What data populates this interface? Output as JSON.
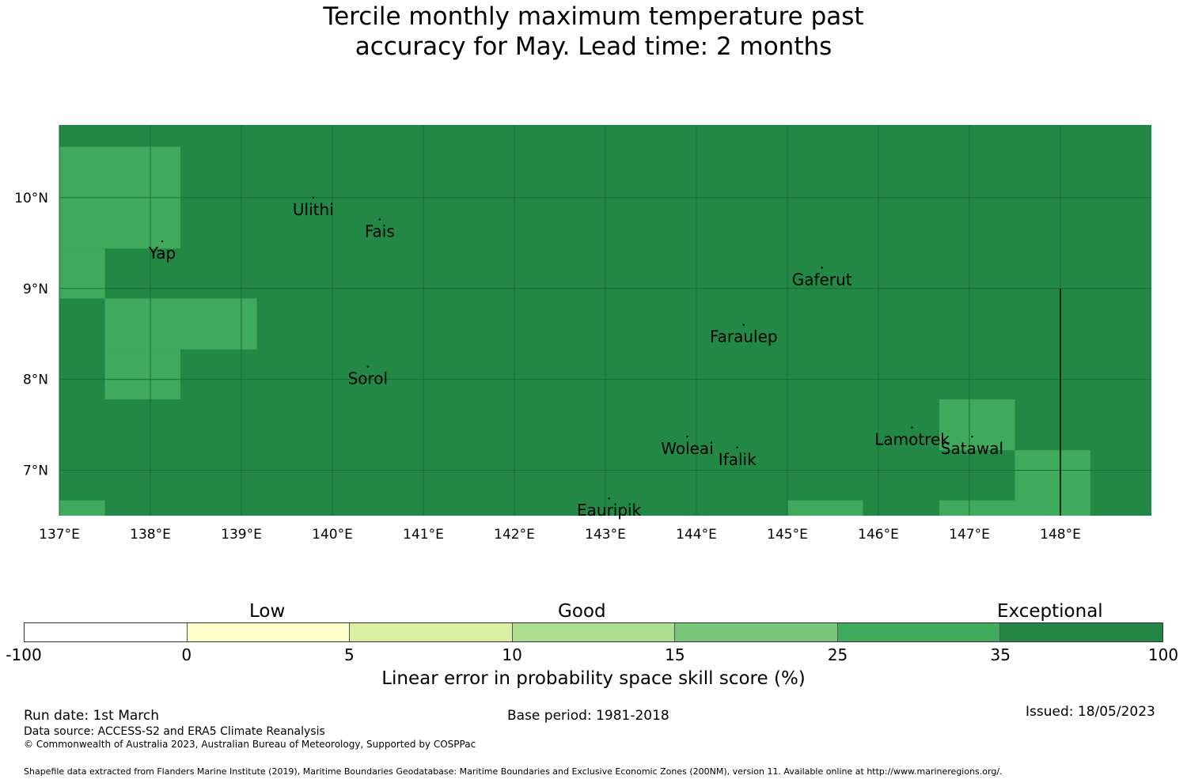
{
  "title": {
    "line1": "Tercile monthly maximum temperature past",
    "line2": "accuracy for May. Lead time: 2 months"
  },
  "map": {
    "lon_range": [
      137.0,
      149.0
    ],
    "lat_range": [
      6.5,
      10.8
    ],
    "lon_ticks": [
      {
        "value": 137,
        "label": "137°E"
      },
      {
        "value": 138,
        "label": "138°E"
      },
      {
        "value": 139,
        "label": "139°E"
      },
      {
        "value": 140,
        "label": "140°E"
      },
      {
        "value": 141,
        "label": "141°E"
      },
      {
        "value": 142,
        "label": "142°E"
      },
      {
        "value": 143,
        "label": "143°E"
      },
      {
        "value": 144,
        "label": "144°E"
      },
      {
        "value": 145,
        "label": "145°E"
      },
      {
        "value": 146,
        "label": "146°E"
      },
      {
        "value": 147,
        "label": "147°E"
      },
      {
        "value": 148,
        "label": "148°E"
      }
    ],
    "lat_ticks": [
      {
        "value": 10,
        "label": "10°N"
      },
      {
        "value": 9,
        "label": "9°N"
      },
      {
        "value": 8,
        "label": "8°N"
      },
      {
        "value": 7,
        "label": "7°N"
      }
    ],
    "background_color": "#238845",
    "patch_color": "#40aa5c",
    "grid_color": "#1a6b36",
    "patches": [
      {
        "lon": [
          137.0,
          138.33
        ],
        "lat": [
          9.44,
          10.56
        ]
      },
      {
        "lon": [
          137.0,
          137.5
        ],
        "lat": [
          8.89,
          9.44
        ]
      },
      {
        "lon": [
          137.5,
          139.17
        ],
        "lat": [
          8.33,
          8.89
        ]
      },
      {
        "lon": [
          137.5,
          138.33
        ],
        "lat": [
          7.78,
          8.33
        ]
      },
      {
        "lon": [
          146.67,
          147.5
        ],
        "lat": [
          7.22,
          7.78
        ]
      },
      {
        "lon": [
          147.5,
          148.33
        ],
        "lat": [
          6.67,
          7.22
        ]
      },
      {
        "lon": [
          137.0,
          137.5
        ],
        "lat": [
          6.5,
          6.67
        ]
      },
      {
        "lon": [
          145.0,
          145.83
        ],
        "lat": [
          6.5,
          6.67
        ]
      },
      {
        "lon": [
          146.67,
          147.5
        ],
        "lat": [
          6.5,
          6.67
        ]
      },
      {
        "lon": [
          147.5,
          148.33
        ],
        "lat": [
          6.5,
          6.67
        ]
      }
    ],
    "boundary_line": {
      "lon": 148.0,
      "lat": [
        6.5,
        9.0
      ]
    },
    "places": [
      {
        "name": "Ulithi",
        "lon": 139.79,
        "lat": 10.0
      },
      {
        "name": "Fais",
        "lon": 140.52,
        "lat": 9.76
      },
      {
        "name": "Yap",
        "lon": 138.13,
        "lat": 9.52
      },
      {
        "name": "Gaferut",
        "lon": 145.38,
        "lat": 9.23
      },
      {
        "name": "Faraulep",
        "lon": 144.52,
        "lat": 8.6
      },
      {
        "name": "Sorol",
        "lon": 140.39,
        "lat": 8.14
      },
      {
        "name": "Woleai",
        "lon": 143.9,
        "lat": 7.37
      },
      {
        "name": "Ifalik",
        "lon": 144.45,
        "lat": 7.25
      },
      {
        "name": "Lamotrek",
        "lon": 146.37,
        "lat": 7.47
      },
      {
        "name": "Satawal",
        "lon": 147.03,
        "lat": 7.37
      },
      {
        "name": "Eauripik",
        "lon": 143.04,
        "lat": 6.69
      }
    ]
  },
  "legend": {
    "categories": [
      "Low",
      "Good",
      "Exceptional"
    ],
    "ticks": [
      "-100",
      "0",
      "5",
      "10",
      "15",
      "25",
      "35",
      "100"
    ],
    "colors": [
      "#ffffff",
      "#ffffcc",
      "#d9f0a3",
      "#addd8e",
      "#78c679",
      "#41ab5d",
      "#238443"
    ],
    "label": "Linear error in probability space skill score (%)"
  },
  "footer": {
    "run_date": "Run date: 1st March",
    "base_period": "Base period: 1981-2018",
    "issued": "Issued: 18/05/2023",
    "data_source": "Data source: ACCESS-S2 and ERA5 Climate Reanalysis",
    "copyright": "© Commonwealth of Australia 2023, Australian Bureau of Meteorology, Supported by COSPPac",
    "shapefile": "Shapefile data extracted from Flanders Marine Institute (2019), Maritime Boundaries Geodatabase: Maritime Boundaries and Exclusive Economic Zones (200NM), version 11. Available online at http://www.marineregions.org/."
  }
}
